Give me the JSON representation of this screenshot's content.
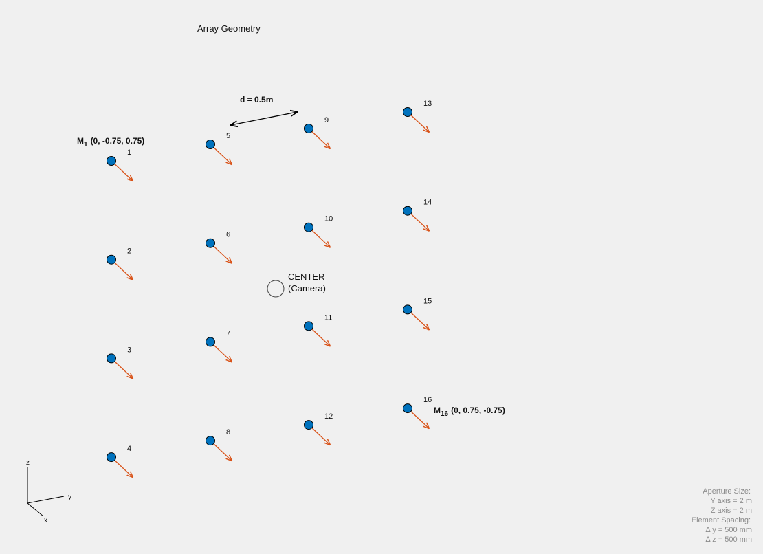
{
  "title": "Array Geometry",
  "spacing_label": "d = 0.5m",
  "center": {
    "line1": "CENTER",
    "line2": "(Camera)"
  },
  "elements": [
    {
      "id": "1",
      "col": 0,
      "row": 0
    },
    {
      "id": "2",
      "col": 0,
      "row": 1
    },
    {
      "id": "3",
      "col": 0,
      "row": 2
    },
    {
      "id": "4",
      "col": 0,
      "row": 3
    },
    {
      "id": "5",
      "col": 1,
      "row": 0
    },
    {
      "id": "6",
      "col": 1,
      "row": 1
    },
    {
      "id": "7",
      "col": 1,
      "row": 2
    },
    {
      "id": "8",
      "col": 1,
      "row": 3
    },
    {
      "id": "9",
      "col": 2,
      "row": 0
    },
    {
      "id": "10",
      "col": 2,
      "row": 1
    },
    {
      "id": "11",
      "col": 2,
      "row": 2
    },
    {
      "id": "12",
      "col": 2,
      "row": 3
    },
    {
      "id": "13",
      "col": 3,
      "row": 0
    },
    {
      "id": "14",
      "col": 3,
      "row": 1
    },
    {
      "id": "15",
      "col": 3,
      "row": 2
    },
    {
      "id": "16",
      "col": 3,
      "row": 3
    }
  ],
  "m1": {
    "letter": "M",
    "sub": "1",
    "coords": "(0, -0.75, 0.75)"
  },
  "m16": {
    "letter": "M",
    "sub": "16",
    "coords": "(0, 0.75, -0.75)"
  },
  "axes": {
    "z": "z",
    "y": "y",
    "x": "x"
  },
  "info": {
    "aperture": "Aperture Size:",
    "y_axis": "Y axis = 2 m",
    "z_axis": "Z axis = 2 m",
    "spacing": "Element Spacing:",
    "dy": "Δ y = 500 mm",
    "dz": "Δ z = 500 mm"
  },
  "colors": {
    "background": "#f0f0f0",
    "element_fill": "#0072bd",
    "normal_arrow": "#d95319",
    "info_text": "#8c8c8c"
  }
}
